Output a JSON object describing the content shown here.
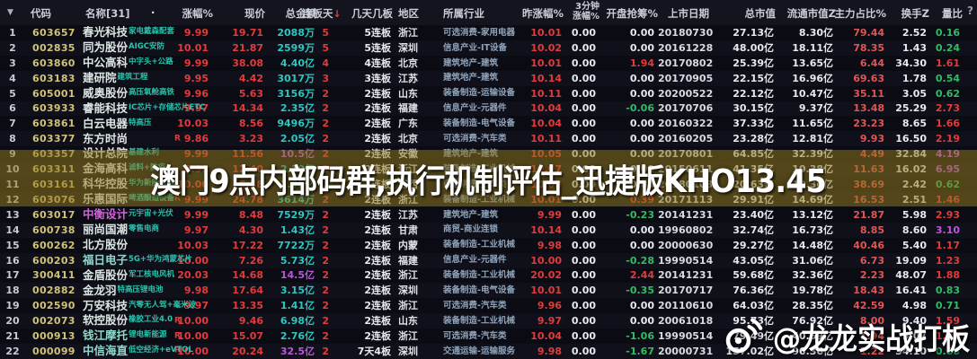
{
  "colors": {
    "up": "#e23b3b",
    "down": "#33bb66",
    "teal": "#2cc7c0",
    "purple": "#bb55e0",
    "code": "#d2c276",
    "tag": "#29c4ae",
    "industry": "#8ea3ba",
    "mainpct": "#e05555"
  },
  "header": {
    "corner_icon": "▼",
    "help_icon": "?",
    "name_sort_dot": "·",
    "days_sort_arrow": "↓",
    "columns": {
      "code": "代码",
      "name": "名称[31]",
      "chg": "涨幅%",
      "price": "现价",
      "amt": "总金额",
      "days": "连板天",
      "boards": "几天几板",
      "region": "地区",
      "industry": "所属行业",
      "ychg": "昨涨幅%",
      "m3_line1": "3分钟",
      "m3_line2": "涨幅%",
      "grab": "开盘抢筹%",
      "date": "上市日期",
      "mcap": "总市值",
      "fcap": "流通市值Z",
      "main": "主力占比%",
      "turn": "换手Z",
      "vr": "量比"
    }
  },
  "watermark": {
    "banner": "澳门9点内部码群,执行机制评估_迅捷版KHO13.45",
    "credit": "@龙龙实战打板",
    "credit_icon": "weibo-icon"
  },
  "rows": [
    {
      "num": "1",
      "code": "603657",
      "name": "春光科技",
      "tag": "家电戴森配套",
      "r": false,
      "chg": "9.99",
      "price": "19.71",
      "amt": "2088万",
      "days": "5",
      "boards": "5连板",
      "region": "浙江",
      "industry": "可选消费-家用电器",
      "ychg": "10.01",
      "m3": "0.00",
      "grab": "0.00",
      "date": "20180730",
      "mcap": "27.13亿",
      "fcap": "8.30亿",
      "main": "79.44",
      "turn": "2.52",
      "vr": "0.16",
      "selected": true
    },
    {
      "num": "2",
      "code": "002835",
      "name": "同为股份",
      "tag": "AIGC安防",
      "r": false,
      "chg": "10.01",
      "price": "21.87",
      "amt": "2599万",
      "days": "5",
      "boards": "5连板",
      "region": "深圳",
      "industry": "信息产业-IT设备",
      "ychg": "10.02",
      "m3": "0.00",
      "grab": "0.00",
      "date": "20161228",
      "mcap": "48.00亿",
      "fcap": "18.11亿",
      "main": "78.35",
      "turn": "1.43",
      "vr": "0.24"
    },
    {
      "num": "3",
      "code": "603860",
      "name": "中公高科",
      "tag": "中字头+公路",
      "r": false,
      "chg": "9.99",
      "price": "38.08",
      "amt": "4.40亿",
      "days": "4",
      "boards": "4连板",
      "region": "北京",
      "industry": "建筑地产-建筑",
      "ychg": "10.01",
      "m3": "0.00",
      "grab": "1.94",
      "date": "20170802",
      "mcap": "25.39亿",
      "fcap": "13.65亿",
      "main": "6.44",
      "turn": "34.30",
      "vr": "1.61"
    },
    {
      "num": "4",
      "code": "603183",
      "name": "建研院",
      "tag": "建筑工程",
      "r": false,
      "chg": "9.95",
      "price": "4.42",
      "amt": "3017万",
      "days": "3",
      "boards": "3连板",
      "region": "江苏",
      "industry": "建筑地产-建筑",
      "ychg": "10.14",
      "m3": "0.00",
      "grab": "0.00",
      "date": "20170905",
      "mcap": "22.15亿",
      "fcap": "16.96亿",
      "main": "69.63",
      "turn": "1.78",
      "vr": "0.54"
    },
    {
      "num": "5",
      "code": "605001",
      "name": "威奥股份",
      "tag": "高压氧舱高铁",
      "r": false,
      "chg": "9.96",
      "price": "5.63",
      "amt": "3156万",
      "days": "2",
      "boards": "2连板",
      "region": "山东",
      "industry": "装备制造-运输设备",
      "ychg": "10.11",
      "m3": "0.00",
      "grab": "0.00",
      "date": "20200522",
      "mcap": "22.12亿",
      "fcap": "10.47亿",
      "main": "35.11",
      "turn": "3.05",
      "vr": "0.62"
    },
    {
      "num": "6",
      "code": "603933",
      "name": "睿能科技",
      "tag": "IC芯片+存储芯片ETC",
      "r": false,
      "chg": "9.97",
      "price": "14.34",
      "amt": "2.35亿",
      "days": "2",
      "boards": "2连板",
      "region": "福建",
      "industry": "信息产业-元器件",
      "ychg": "10.04",
      "m3": "0.00",
      "grab": "-0.06",
      "date": "20170706",
      "mcap": "30.15亿",
      "fcap": "9.37亿",
      "main": "13.48",
      "turn": "25.29",
      "vr": "2.73"
    },
    {
      "num": "7",
      "code": "603861",
      "name": "白云电器",
      "tag": "特高压",
      "r": false,
      "chg": "10.03",
      "price": "8.56",
      "amt": "9496万",
      "days": "2",
      "boards": "2连板",
      "region": "广东",
      "industry": "装备制造-电气设备",
      "ychg": "10.04",
      "m3": "0.00",
      "grab": "0.00",
      "date": "20160322",
      "mcap": "37.33亿",
      "fcap": "11.65亿",
      "main": "23.23",
      "turn": "8.65",
      "vr": "1.66"
    },
    {
      "num": "8",
      "code": "603377",
      "name": "东方时尚",
      "tag": "",
      "r": true,
      "chg": "9.86",
      "price": "3.23",
      "amt": "2.05亿",
      "days": "2",
      "boards": "2连板",
      "region": "北京",
      "industry": "可选消费-汽车类",
      "ychg": "10.11",
      "m3": "0.00",
      "grab": "0.00",
      "date": "20160205",
      "mcap": "23.28亿",
      "fcap": "12.81亿",
      "main": "9.93",
      "turn": "16.50",
      "vr": "2.19"
    },
    {
      "num": "9",
      "code": "603357",
      "name": "设计总院",
      "tag": "基建水利",
      "r": false,
      "chg": "9.99",
      "price": "11.56",
      "amt": "10.5亿",
      "days": "2",
      "boards": "2连板",
      "region": "安徽",
      "industry": "建筑地产-建筑",
      "ychg": "10.05",
      "m3": "0.00",
      "grab": "0.00",
      "date": "20170801",
      "mcap": "64.85亿",
      "fcap": "32.39亿",
      "main": "4.49",
      "turn": "32.84",
      "vr": "4.19"
    },
    {
      "num": "10",
      "code": "603311",
      "name": "金海高科",
      "tag": "滤料+防疫",
      "r": false,
      "chg": "9.98",
      "price": "12.40",
      "amt": "2.10亿",
      "days": "2",
      "boards": "2连板",
      "region": "浙江",
      "industry": "装备制造-工业机械",
      "ychg": "10.07",
      "m3": "0.00",
      "grab": "0.00",
      "date": "20150611",
      "mcap": "41.35亿",
      "fcap": "10.38亿",
      "main": "11.63",
      "turn": "16.02",
      "vr": "6.95"
    },
    {
      "num": "11",
      "code": "603161",
      "name": "科华控股",
      "tag": "华为新能源车",
      "r": false,
      "chg": "10.00",
      "price": "6.58",
      "amt": "1.05亿",
      "days": "2",
      "boards": "2连板",
      "region": "江西",
      "industry": "可选消费-汽车类",
      "ychg": "10.00",
      "m3": "0.00",
      "grab": "0.00",
      "date": "20180103",
      "mcap": "20.63亿",
      "fcap": "10.30亿",
      "main": "38.69",
      "turn": "2.42",
      "vr": "0.62"
    },
    {
      "num": "12",
      "code": "603076",
      "name": "乐惠国际",
      "tag": "啤酒酿造设备",
      "r": true,
      "chg": "9.99",
      "price": "24.78",
      "amt": "3614万",
      "days": "2",
      "boards": "2连板",
      "region": "浙江",
      "industry": "装备制造-工业机械",
      "ychg": "10.01",
      "m3": "0.00",
      "grab": "0.39",
      "date": "20171113",
      "mcap": "29.91亿",
      "fcap": "14.69亿",
      "main": "16.53",
      "turn": "2.51",
      "vr": "1.46"
    },
    {
      "num": "13",
      "code": "603017",
      "name": "中衡设计",
      "tag": "元宇宙+光伏",
      "r": false,
      "name_color": "magenta",
      "chg": "9.99",
      "price": "8.48",
      "amt": "7529万",
      "days": "2",
      "boards": "2连板",
      "region": "江苏",
      "industry": "建筑地产-建筑",
      "ychg": "9.99",
      "m3": "0.00",
      "grab": "-0.23",
      "date": "20141231",
      "mcap": "23.40亿",
      "fcap": "13.12亿",
      "main": "21.87",
      "turn": "5.98",
      "vr": "2.93"
    },
    {
      "num": "14",
      "code": "600738",
      "name": "丽尚国潮",
      "tag": "零售电商",
      "r": false,
      "chg": "9.97",
      "price": "4.30",
      "amt": "1.43亿",
      "days": "2",
      "boards": "2连板",
      "region": "甘肃",
      "industry": "商贸-商业连锁",
      "ychg": "10.14",
      "m3": "0.00",
      "grab": "0.00",
      "date": "19960802",
      "mcap": "32.74亿",
      "fcap": "16.73亿",
      "main": "8.85",
      "turn": "8.60",
      "vr": "3.10"
    },
    {
      "num": "15",
      "code": "600262",
      "name": "北方股份",
      "tag": "",
      "r": false,
      "chg": "10.03",
      "price": "17.22",
      "amt": "7722万",
      "days": "2",
      "boards": "2连板",
      "region": "内蒙",
      "industry": "装备制造-工业机械",
      "ychg": "9.98",
      "m3": "0.00",
      "grab": "0.00",
      "date": "20000630",
      "mcap": "29.27亿",
      "fcap": "14.48亿",
      "main": "40.46",
      "turn": "5.40",
      "vr": "1.17"
    },
    {
      "num": "16",
      "code": "600203",
      "name": "福日电子",
      "tag": "5G+华为鸿蒙芯片",
      "r": false,
      "name_color": "teal",
      "chg": "10.00",
      "price": "7.26",
      "amt": "5.73亿",
      "days": "2",
      "boards": "2连板",
      "region": "福建",
      "industry": "信息产业-元器件",
      "ychg": "10.00",
      "m3": "0.00",
      "grab": "-0.28",
      "date": "19990514",
      "mcap": "43.05亿",
      "fcap": "31.06亿",
      "main": "6.73",
      "turn": "19.09",
      "vr": "1.23"
    },
    {
      "num": "17",
      "code": "300411",
      "name": "金盾股份",
      "tag": "军工核电风机",
      "r": false,
      "chg": "20.03",
      "price": "14.68",
      "amt": "14.5亿",
      "days": "2",
      "boards": "2连板",
      "region": "浙江",
      "industry": "装备制造-工业机械",
      "ychg": "20.02",
      "m3": "0.00",
      "grab": "2.44",
      "date": "20141231",
      "mcap": "59.68亿",
      "fcap": "32.36亿",
      "main": "2.23",
      "turn": "48.07",
      "vr": "1.88"
    },
    {
      "num": "18",
      "code": "002882",
      "name": "金龙羽",
      "tag": "特高压锂电池",
      "r": false,
      "chg": "9.98",
      "price": "17.64",
      "amt": "3.15亿",
      "days": "2",
      "boards": "2连板",
      "region": "深圳",
      "industry": "装备制造-电气设备",
      "ychg": "10.01",
      "m3": "0.00",
      "grab": "-0.35",
      "date": "20170717",
      "mcap": "76.36亿",
      "fcap": "19.78亿",
      "main": "18.43",
      "turn": "16.41",
      "vr": "0.83"
    },
    {
      "num": "19",
      "code": "002590",
      "name": "万安科技",
      "tag": "汽零无人驾+毫米波",
      "r": false,
      "chg": "9.97",
      "price": "13.35",
      "amt": "1.41亿",
      "days": "2",
      "boards": "2连板",
      "region": "浙江",
      "industry": "可选消费-汽车类",
      "ychg": "9.96",
      "m3": "0.00",
      "grab": "0.00",
      "date": "20110610",
      "mcap": "64.03亿",
      "fcap": "28.35亿",
      "main": "42.59",
      "turn": "4.98",
      "vr": "0.71"
    },
    {
      "num": "20",
      "code": "002073",
      "name": "软控股份",
      "tag": "橡胶工业4.0",
      "r": true,
      "chg": "10.00",
      "price": "9.46",
      "amt": "6.98亿",
      "days": "2",
      "boards": "2连板",
      "region": "山东",
      "industry": "装备制造-工业机械",
      "ychg": "9.97",
      "m3": "0.00",
      "grab": "0.00",
      "date": "20061018",
      "mcap": "95.73亿",
      "fcap": "76.92亿",
      "main": "8.00",
      "turn": "9.40",
      "vr": "1.59"
    },
    {
      "num": "21",
      "code": "000913",
      "name": "钱江摩托",
      "tag": "锂电新能源",
      "r": true,
      "name_color": "teal",
      "chg": "10.00",
      "price": "15.07",
      "amt": "2.76亿",
      "days": "2",
      "boards": "2连板",
      "region": "浙江",
      "industry": "可选消费-汽车类",
      "ychg": "10.04",
      "m3": "0.00",
      "grab": "-1.06",
      "date": "19990514",
      "mcap": "79.49亿",
      "fcap": "40.59亿",
      "main": "1.94",
      "turn": "9.07",
      "vr": "1.21"
    },
    {
      "num": "22",
      "code": "000099",
      "name": "中信海直",
      "tag": "低空经济+eVTOL",
      "r": true,
      "name_color": "teal",
      "chg": "10.00",
      "price": "20.24",
      "amt": "32.5亿",
      "days": "2",
      "boards": "7天4板",
      "region": "深圳",
      "industry": "交通运输-运输服务",
      "ychg": "9.98",
      "m3": "0.00",
      "grab": "-1.67",
      "date": "20000731",
      "mcap": "157.02亿",
      "fcap": "96.36亿",
      "main": "1.22",
      "turn": "34.10",
      "vr": "0.88"
    }
  ]
}
